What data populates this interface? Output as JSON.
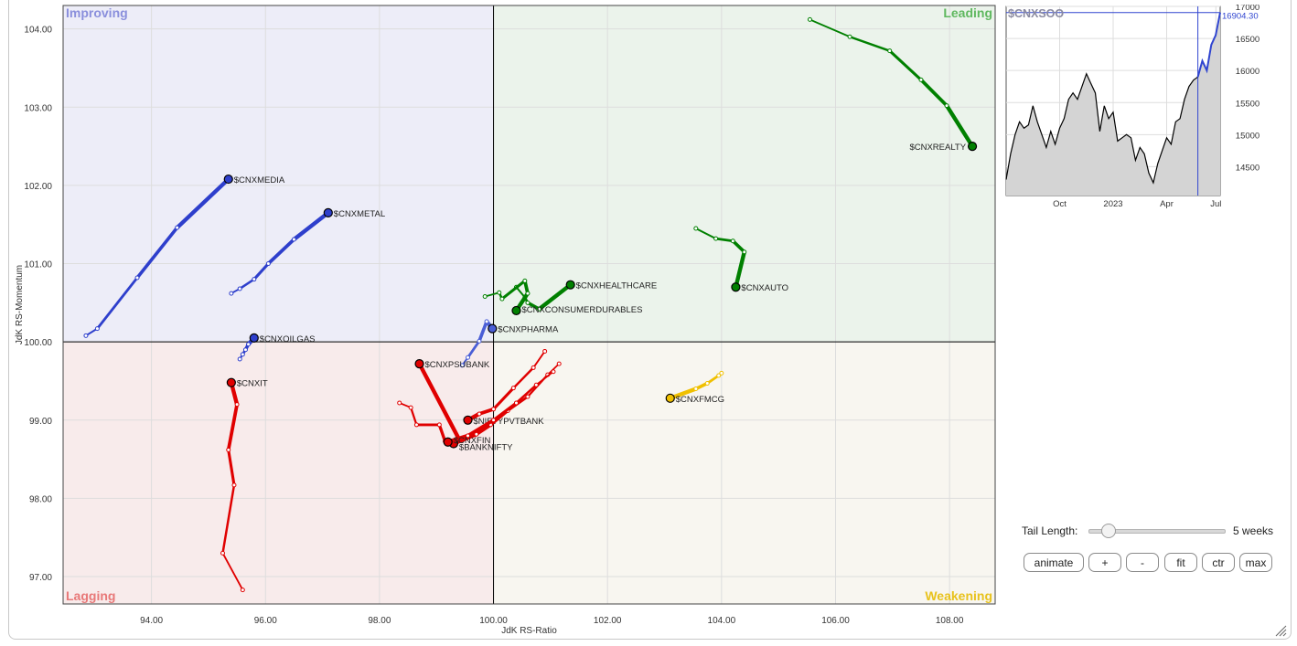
{
  "chart_data": {
    "type": "scatter",
    "xlabel": "JdK RS-Ratio",
    "ylabel": "JdK RS-Momentum",
    "xlim": [
      92.45,
      108.8
    ],
    "ylim": [
      96.65,
      104.3
    ],
    "center": [
      100,
      100
    ],
    "x_ticks": [
      "94.00",
      "96.00",
      "98.00",
      "100.00",
      "102.00",
      "104.00",
      "106.00",
      "108.00"
    ],
    "y_ticks": [
      "97.00",
      "98.00",
      "99.00",
      "100.00",
      "101.00",
      "102.00",
      "103.00",
      "104.00"
    ],
    "grid": true,
    "quadrants": [
      {
        "name": "Improving",
        "color": "#8a8fdc",
        "fill": "#ededf8"
      },
      {
        "name": "Leading",
        "color": "#5fb85f",
        "fill": "#ebf3eb"
      },
      {
        "name": "Weakening",
        "color": "#e8c21c",
        "fill": "#f8f6f0"
      },
      {
        "name": "Lagging",
        "color": "#e87878",
        "fill": "#f8ebeb"
      }
    ],
    "series": [
      {
        "name": "$CNXREALTY",
        "color": "#008000",
        "points": [
          [
            105.55,
            104.12
          ],
          [
            106.25,
            103.9
          ],
          [
            106.95,
            103.72
          ],
          [
            107.5,
            103.35
          ],
          [
            107.95,
            103.02
          ],
          [
            108.4,
            102.5
          ]
        ]
      },
      {
        "name": "$CNXAUTO",
        "color": "#008000",
        "points": [
          [
            103.55,
            101.45
          ],
          [
            103.9,
            101.32
          ],
          [
            104.2,
            101.29
          ],
          [
            104.4,
            101.15
          ],
          [
            104.25,
            100.7
          ]
        ]
      },
      {
        "name": "$CNXHEALTHCARE",
        "color": "#008000",
        "points": [
          [
            100.4,
            100.7
          ],
          [
            100.55,
            100.57
          ],
          [
            100.6,
            100.5
          ],
          [
            100.8,
            100.42
          ],
          [
            101.35,
            100.73
          ]
        ]
      },
      {
        "name": "$CNXCONSUMERDURABLES",
        "color": "#008000",
        "points": [
          [
            99.85,
            100.58
          ],
          [
            100.1,
            100.63
          ],
          [
            100.15,
            100.55
          ],
          [
            100.55,
            100.78
          ],
          [
            100.6,
            100.62
          ],
          [
            100.4,
            100.4
          ]
        ]
      },
      {
        "name": "$CNXMEDIA",
        "color": "#2e3fcc",
        "points": [
          [
            92.85,
            100.08
          ],
          [
            93.05,
            100.17
          ],
          [
            93.75,
            100.82
          ],
          [
            94.45,
            101.46
          ],
          [
            95.35,
            102.08
          ]
        ]
      },
      {
        "name": "$CNXMETAL",
        "color": "#2e3fcc",
        "points": [
          [
            95.4,
            100.62
          ],
          [
            95.55,
            100.68
          ],
          [
            95.8,
            100.8
          ],
          [
            96.05,
            101.0
          ],
          [
            96.5,
            101.31
          ],
          [
            97.1,
            101.65
          ]
        ]
      },
      {
        "name": "$CNXOILGAS",
        "color": "#2e3fcc",
        "points": [
          [
            95.55,
            99.78
          ],
          [
            95.6,
            99.84
          ],
          [
            95.65,
            99.9
          ],
          [
            95.7,
            99.97
          ],
          [
            95.8,
            100.05
          ]
        ]
      },
      {
        "name": "$CNXPHARMA",
        "color": "#4a5ed6",
        "points": [
          [
            99.45,
            99.7
          ],
          [
            99.55,
            99.8
          ],
          [
            99.75,
            100.01
          ],
          [
            99.88,
            100.26
          ],
          [
            99.98,
            100.17
          ]
        ]
      },
      {
        "name": "$CNXIT",
        "color": "#e00000",
        "points": [
          [
            95.6,
            96.83
          ],
          [
            95.25,
            97.3
          ],
          [
            95.45,
            98.17
          ],
          [
            95.35,
            98.62
          ],
          [
            95.5,
            99.2
          ],
          [
            95.4,
            99.48
          ]
        ]
      },
      {
        "name": "$CNXPSUBANK",
        "color": "#e00000",
        "points": [
          [
            98.35,
            99.22
          ],
          [
            98.55,
            99.16
          ],
          [
            98.65,
            98.94
          ],
          [
            99.05,
            98.94
          ],
          [
            99.15,
            98.73
          ],
          [
            99.4,
            98.75
          ],
          [
            98.7,
            99.72
          ]
        ]
      },
      {
        "name": "$NIFTYPVTBANK",
        "color": "#e00000",
        "points": [
          [
            100.9,
            99.88
          ],
          [
            100.7,
            99.67
          ],
          [
            100.35,
            99.41
          ],
          [
            100.0,
            99.14
          ],
          [
            99.75,
            99.08
          ],
          [
            99.55,
            99.0
          ]
        ]
      },
      {
        "name": "$BANKNIFTY",
        "color": "#e00000",
        "points": [
          [
            101.15,
            99.72
          ],
          [
            100.95,
            99.58
          ],
          [
            100.6,
            99.3
          ],
          [
            100.25,
            99.12
          ],
          [
            99.95,
            98.94
          ],
          [
            99.7,
            98.82
          ],
          [
            99.3,
            98.7
          ]
        ]
      },
      {
        "name": "$CNXFIN",
        "color": "#e00000",
        "points": [
          [
            101.05,
            99.62
          ],
          [
            100.75,
            99.45
          ],
          [
            100.4,
            99.22
          ],
          [
            100.0,
            99.0
          ],
          [
            99.55,
            98.8
          ],
          [
            99.2,
            98.72
          ]
        ]
      },
      {
        "name": "$CNXFMCG",
        "color": "#f0c000",
        "points": [
          [
            104.0,
            99.6
          ],
          [
            103.95,
            99.57
          ],
          [
            103.75,
            99.47
          ],
          [
            103.55,
            99.4
          ],
          [
            103.1,
            99.28
          ]
        ]
      }
    ],
    "labels": {
      "$CNXREALTY": "$CNXREALTY",
      "$CNXAUTO": "$CNXAUTO",
      "$CNXHEALTHCARE": "$CNXHEALTHCARE",
      "$CNXCONSUMERDURABLES": "$CNXCONSUMERDURABLES",
      "$CNXMEDIA": "$CNXMEDIA",
      "$CNXMETAL": "$CNXMETAL",
      "$CNXOILGAS": "$CNXOILGAS",
      "$CNXPHARMA": "$CNXPHARMA",
      "$CNXIT": "$CNXIT",
      "$CNXPSUBANK": "$CNXPSUBANK",
      "$NIFTYPVTBANK": "$NIFTYPVTBANK",
      "$BANKNIFTY": "$BANKNIFTY",
      "$CNXFIN": "$CNXFIN",
      "$CNXFMCG": "$CNXFMCG"
    }
  },
  "benchmark": {
    "name": "$CNXSOO",
    "last_value": "16904.30",
    "y_ticks": [
      "17000",
      "16500",
      "16000",
      "15500",
      "15000",
      "14500"
    ],
    "x_ticks": [
      "Oct",
      "2023",
      "Apr",
      "Jul"
    ],
    "ylim": [
      14050,
      17000
    ],
    "series": [
      14300,
      14700,
      15000,
      15200,
      15100,
      15150,
      15450,
      15200,
      15000,
      14800,
      15050,
      14850,
      15100,
      15250,
      15550,
      15650,
      15550,
      15750,
      15950,
      15800,
      15650,
      15050,
      15450,
      15250,
      15350,
      14900,
      14950,
      15000,
      14950,
      14600,
      14800,
      14700,
      14400,
      14250,
      14550,
      14750,
      14950,
      14850,
      15200,
      15250,
      15550,
      15750,
      15850,
      15900,
      16150,
      16000,
      16400,
      16550,
      16904
    ]
  },
  "controls": {
    "tail_label": "Tail Length:",
    "tail_value": "5 weeks",
    "tail_fraction": 0.1,
    "animate": "animate",
    "plus": "+",
    "minus": "-",
    "fit": "fit",
    "ctr": "ctr",
    "max": "max"
  }
}
